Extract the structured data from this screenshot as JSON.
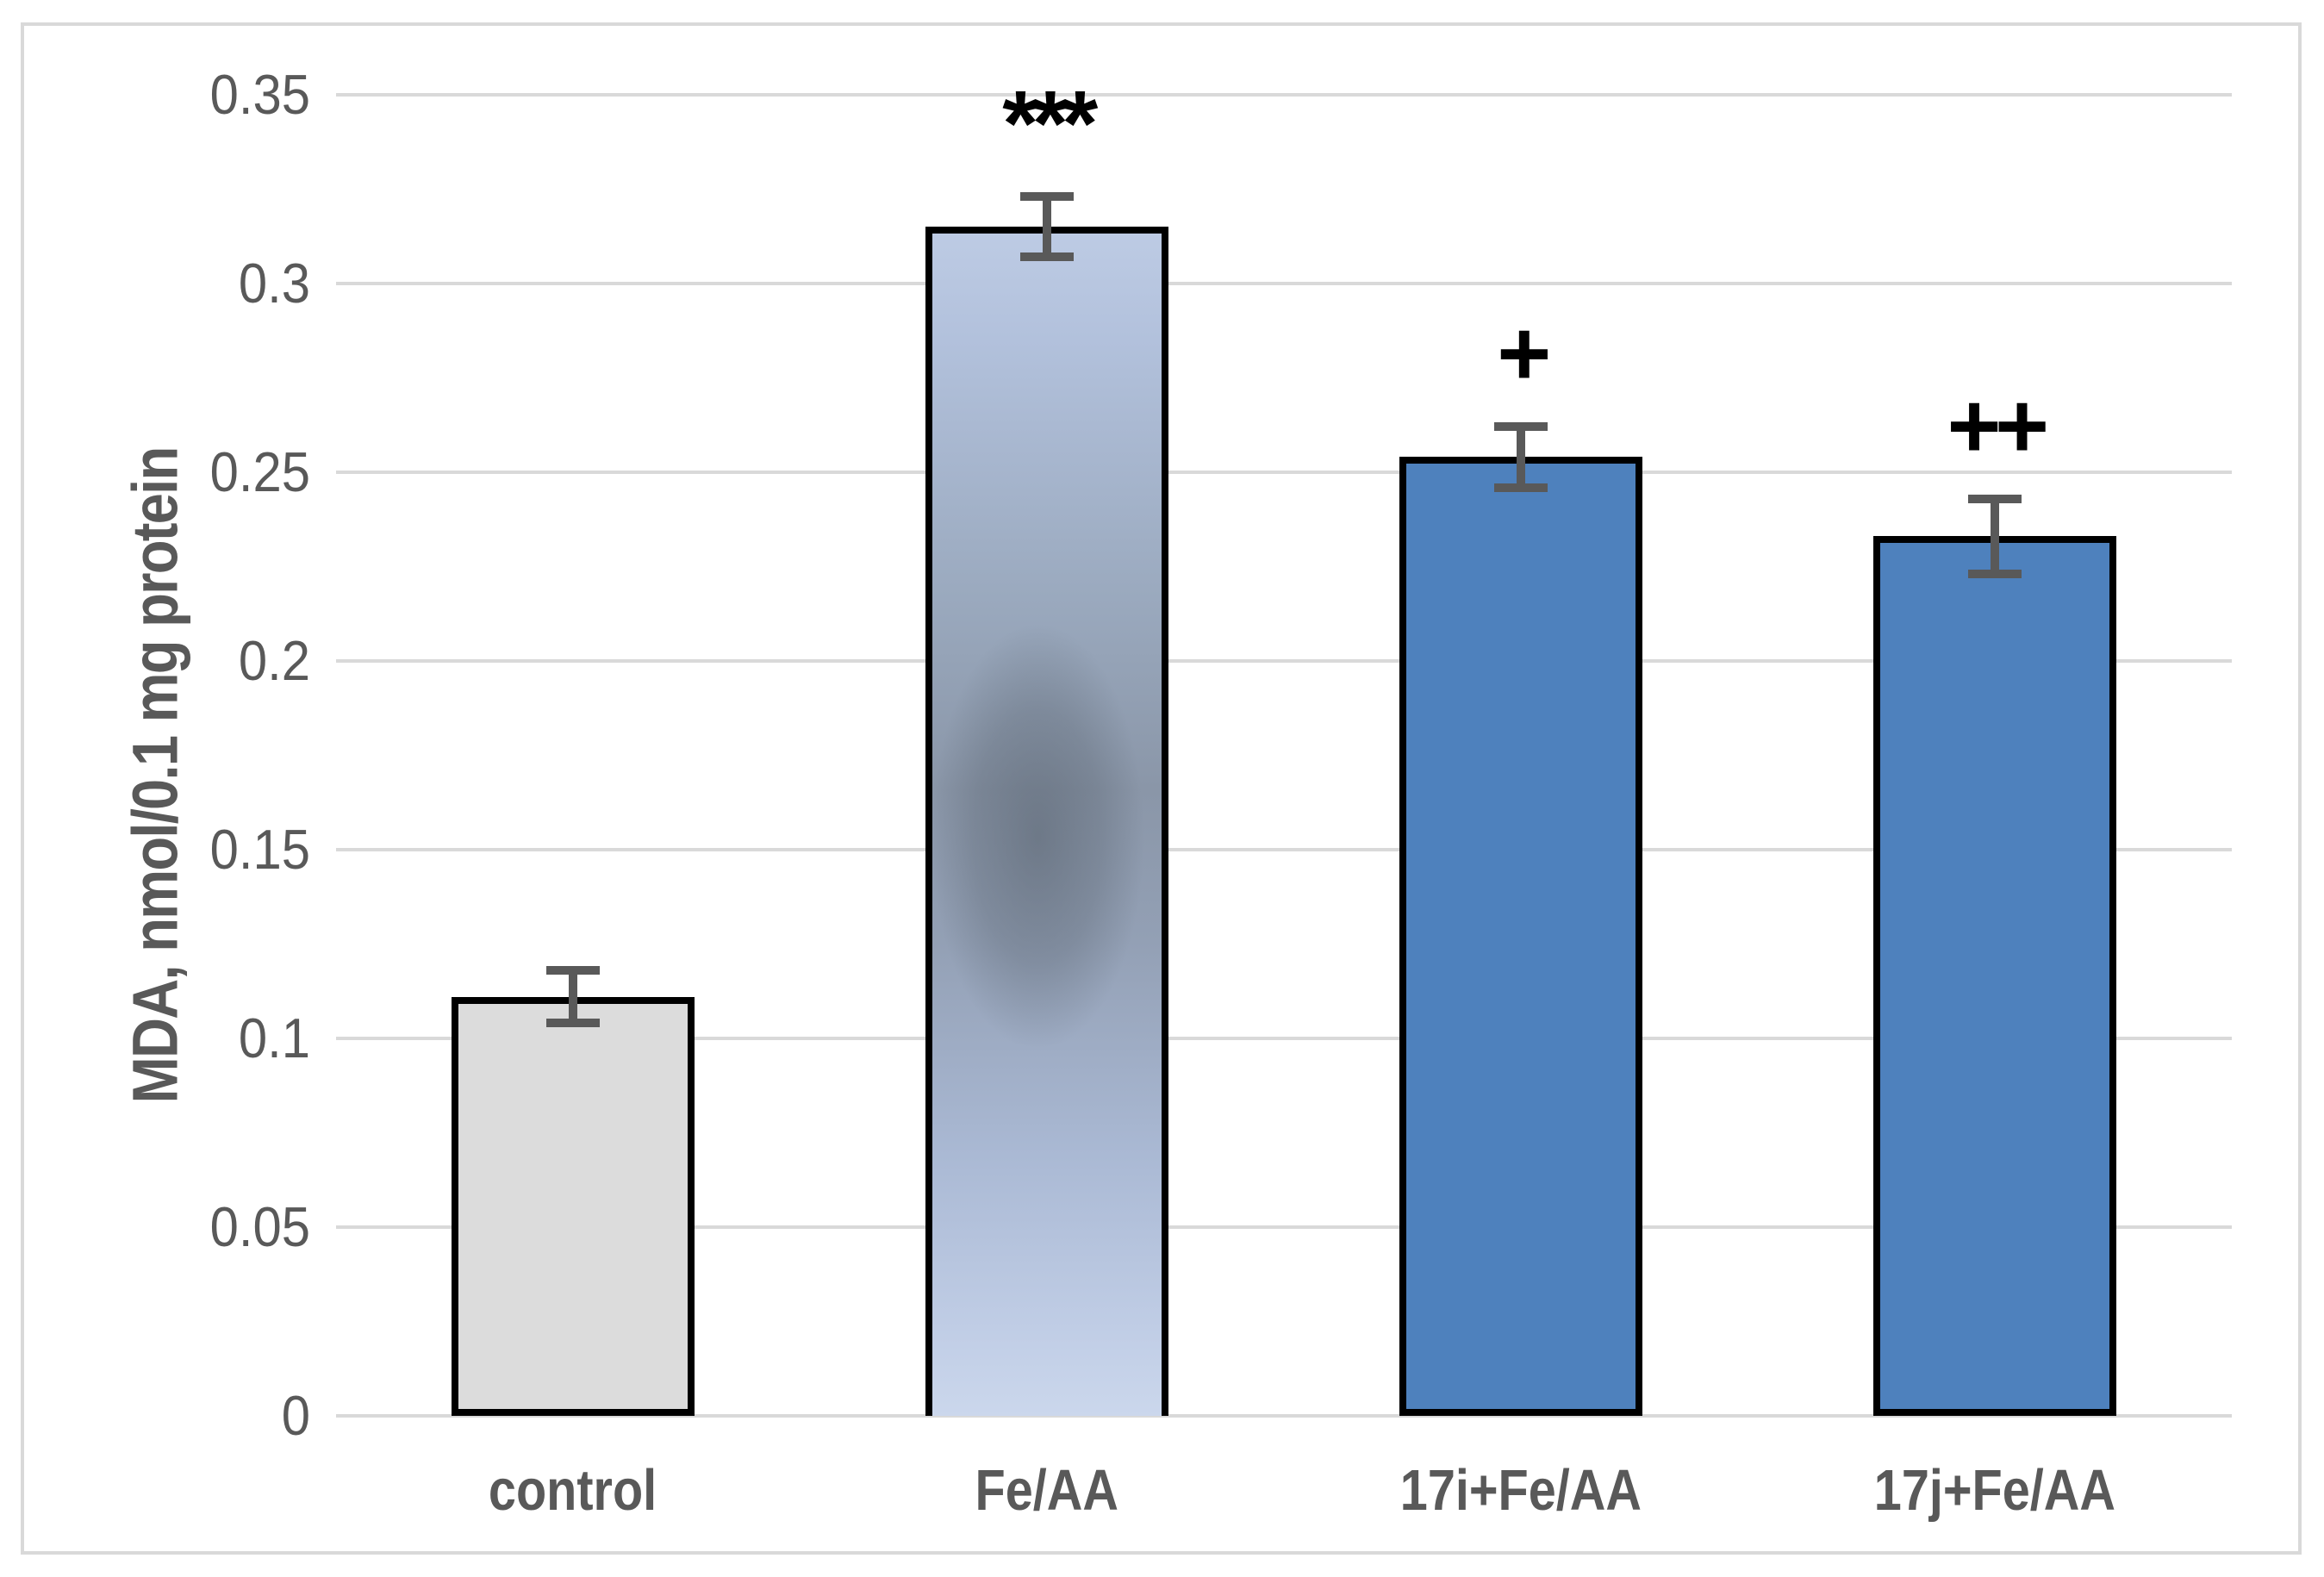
{
  "figure": {
    "kind": "bar-chart-figure",
    "background_color": "#ffffff",
    "frame_color": "#d9d9d9"
  },
  "y_axis": {
    "title": "MDA, nmol/0.1 mg protein",
    "tick_labels": [
      "0",
      "0.05",
      "0.1",
      "0.15",
      "0.2",
      "0.25",
      "0.3",
      "0.35"
    ],
    "tick_values": [
      0,
      0.05,
      0.1,
      0.15,
      0.2,
      0.25,
      0.3,
      0.35
    ]
  },
  "chart_data": {
    "type": "bar",
    "title": "",
    "xlabel": "",
    "ylabel": "MDA, nmol/0.1 mg protein",
    "categories": [
      "control",
      "Fe/AA",
      "17i+Fe/AA",
      "17j+Fe/AA"
    ],
    "values": [
      0.111,
      0.315,
      0.254,
      0.233
    ],
    "error_bars": [
      0.007,
      0.008,
      0.008,
      0.01
    ],
    "annotations": [
      "",
      "***",
      "+",
      "++"
    ],
    "ylim": [
      0,
      0.35
    ],
    "ytick_step": 0.05,
    "grid": "horizontal",
    "legend": "none",
    "bar_fill_colors": [
      "#dcdcdc",
      "gradient-light-blue-smudge",
      "#4e81bd",
      "#4e81bd"
    ],
    "bar_border_color": "#000000",
    "error_bar_color": "#595959",
    "gridline_color": "#d9d9d9",
    "axis_text_color": "#595959",
    "annotation_color": "#000000"
  }
}
